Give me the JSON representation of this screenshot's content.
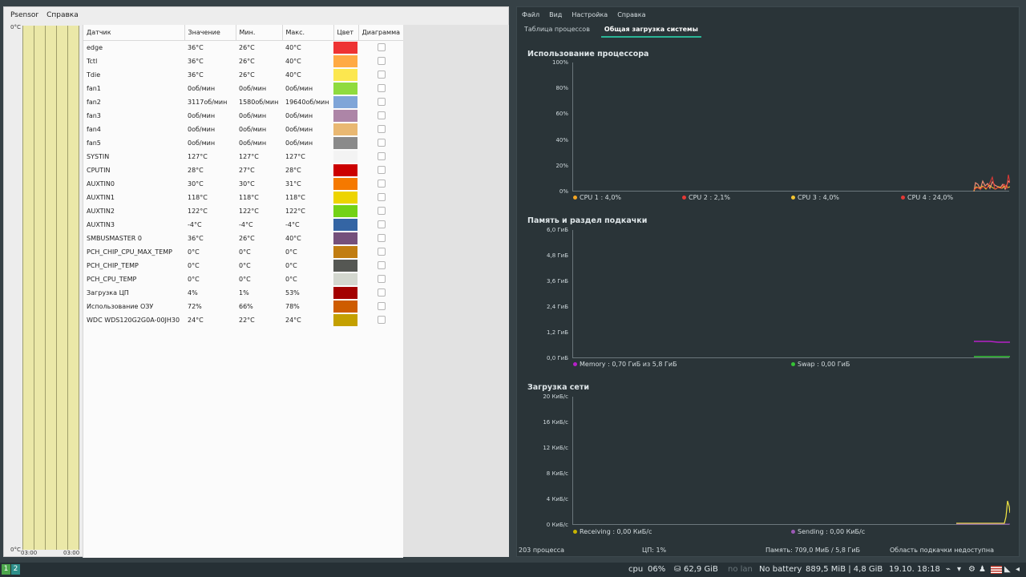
{
  "psensor": {
    "menu": [
      "Psensor",
      "Справка"
    ],
    "graph": {
      "y_top": "0°C",
      "y_bottom": "0°C",
      "x_left": "03:00",
      "x_right": "03:00"
    },
    "columns": [
      "Датчик",
      "Значение",
      "Мин.",
      "Макс.",
      "Цвет",
      "Диаграмма"
    ],
    "rows": [
      {
        "sensor": "edge",
        "value": "36°C",
        "min": "26°C",
        "max": "40°C",
        "color": "#ee3333"
      },
      {
        "sensor": "Tctl",
        "value": "36°C",
        "min": "26°C",
        "max": "40°C",
        "color": "#ffaa44"
      },
      {
        "sensor": "Tdie",
        "value": "36°C",
        "min": "26°C",
        "max": "40°C",
        "color": "#fce74f"
      },
      {
        "sensor": "fan1",
        "value": "0об/мин",
        "min": "0об/мин",
        "max": "0об/мин",
        "color": "#8fdb3e"
      },
      {
        "sensor": "fan2",
        "value": "3117об/мин",
        "min": "1580об/мин",
        "max": "19640об/мин",
        "color": "#7fa5d8"
      },
      {
        "sensor": "fan3",
        "value": "0об/мин",
        "min": "0об/мин",
        "max": "0об/мин",
        "color": "#ad85a7"
      },
      {
        "sensor": "fan4",
        "value": "0об/мин",
        "min": "0об/мин",
        "max": "0об/мин",
        "color": "#e9b872"
      },
      {
        "sensor": "fan5",
        "value": "0об/мин",
        "min": "0об/мин",
        "max": "0об/мин",
        "color": "#8a8a8a"
      },
      {
        "sensor": "SYSTIN",
        "value": "127°C",
        "min": "127°C",
        "max": "127°C",
        "color": "#f3f3f3"
      },
      {
        "sensor": "CPUTIN",
        "value": "28°C",
        "min": "27°C",
        "max": "28°C",
        "color": "#cc0000"
      },
      {
        "sensor": "AUXTIN0",
        "value": "30°C",
        "min": "30°C",
        "max": "31°C",
        "color": "#f57900"
      },
      {
        "sensor": "AUXTIN1",
        "value": "118°C",
        "min": "118°C",
        "max": "118°C",
        "color": "#edd400"
      },
      {
        "sensor": "AUXTIN2",
        "value": "122°C",
        "min": "122°C",
        "max": "122°C",
        "color": "#73d216"
      },
      {
        "sensor": "AUXTIN3",
        "value": "-4°C",
        "min": "-4°C",
        "max": "-4°C",
        "color": "#3465a4"
      },
      {
        "sensor": "SMBUSMASTER 0",
        "value": "36°C",
        "min": "26°C",
        "max": "40°C",
        "color": "#75507b"
      },
      {
        "sensor": "PCH_CHIP_CPU_MAX_TEMP",
        "value": "0°C",
        "min": "0°C",
        "max": "0°C",
        "color": "#c17d11"
      },
      {
        "sensor": "PCH_CHIP_TEMP",
        "value": "0°C",
        "min": "0°C",
        "max": "0°C",
        "color": "#555753"
      },
      {
        "sensor": "PCH_CPU_TEMP",
        "value": "0°C",
        "min": "0°C",
        "max": "0°C",
        "color": "#d3d7cf"
      },
      {
        "sensor": "Загрузка ЦП",
        "value": "4%",
        "min": "1%",
        "max": "53%",
        "color": "#a40000"
      },
      {
        "sensor": "Использование ОЗУ",
        "value": "72%",
        "min": "66%",
        "max": "78%",
        "color": "#ce5c00"
      },
      {
        "sensor": "WDC WDS120G2G0A-00JH30",
        "value": "24°C",
        "min": "22°C",
        "max": "24°C",
        "color": "#c4a000"
      }
    ]
  },
  "sysmon": {
    "menu": [
      "Файл",
      "Вид",
      "Настройка",
      "Справка"
    ],
    "tabs": [
      "Таблица процессов",
      "Общая загрузка системы"
    ],
    "cpu": {
      "title": "Использование процессора",
      "yticks": [
        "100%",
        "80%",
        "60%",
        "40%",
        "20%",
        "0%"
      ],
      "legend": [
        {
          "label": "CPU 1 : 4,0%",
          "color": "#f5a623"
        },
        {
          "label": "CPU 2 : 2,1%",
          "color": "#e53935"
        },
        {
          "label": "CPU 3 : 4,0%",
          "color": "#f4c430"
        },
        {
          "label": "CPU 4 : 24,0%",
          "color": "#e53935"
        }
      ]
    },
    "mem": {
      "title": "Память и раздел подкачки",
      "yticks": [
        "6,0 ГиБ",
        "4,8 ГиБ",
        "3,6 ГиБ",
        "2,4 ГиБ",
        "1,2 ГиБ",
        "0,0 ГиБ"
      ],
      "legend": [
        {
          "label": "Memory : 0,70 ГиБ из 5,8 ГиБ",
          "color": "#b620c8"
        },
        {
          "label": "Swap : 0,00 ГиБ",
          "color": "#35c335"
        }
      ]
    },
    "net": {
      "title": "Загрузка сети",
      "yticks": [
        "20 КиБ/с",
        "16 КиБ/с",
        "12 КиБ/с",
        "8 КиБ/с",
        "4 КиБ/с",
        "0 КиБ/с"
      ],
      "legend": [
        {
          "label": "Receiving : 0,00 КиБ/с",
          "color": "#c8b400"
        },
        {
          "label": "Sending : 0,00 КиБ/с",
          "color": "#9b59b6"
        }
      ]
    },
    "status": {
      "processes": "203 процесса",
      "cpu": "ЦП: 1%",
      "memory": "Память: 709,0 МиБ / 5,8 ГиБ",
      "swap": "Область подкачки недоступна"
    }
  },
  "taskbar": {
    "workspaces": [
      "1",
      "2"
    ],
    "cpu_label": "cpu",
    "cpu_value": "06%",
    "disk": "62,9 GiB",
    "lan": "no lan",
    "battery": "No battery",
    "memory": "889,5 MiB | 4,8 GiB",
    "datetime": "19.10. 18:18"
  }
}
